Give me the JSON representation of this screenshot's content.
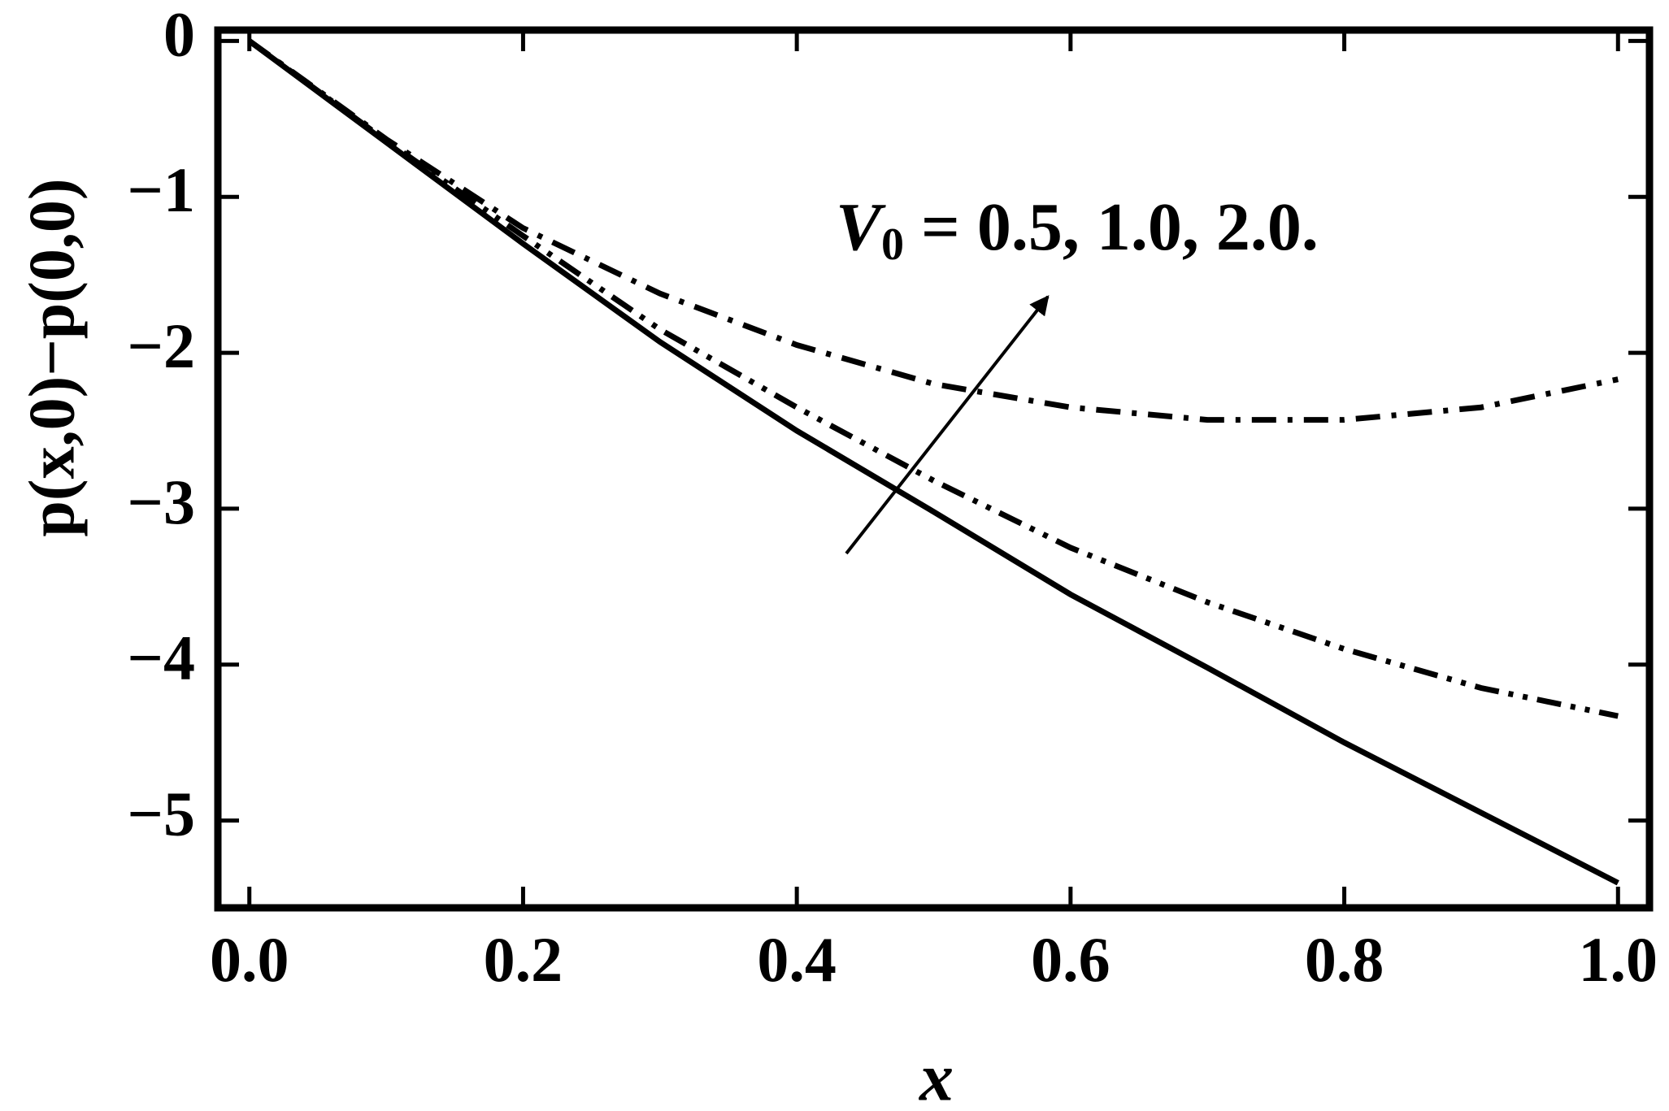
{
  "chart_data": {
    "type": "line",
    "x_label": "x",
    "y_label": "p(x,0)−p(0,0)",
    "annotation": {
      "symbol": "V",
      "subscript": "0",
      "text": " = 0.5, 1.0, 2.0."
    },
    "x": [
      0,
      0.1,
      0.2,
      0.3,
      0.4,
      0.5,
      0.6,
      0.7,
      0.8,
      0.9,
      1.0
    ],
    "series": [
      {
        "color": "#000000",
        "dash": "solid",
        "values": [
          0,
          -0.65,
          -1.3,
          -1.93,
          -2.5,
          -3.02,
          -3.55,
          -4.02,
          -4.5,
          -4.95,
          -5.4
        ]
      },
      {
        "color": "#000000",
        "dash": "dash-dot-dot",
        "values": [
          0,
          -0.64,
          -1.25,
          -1.85,
          -2.35,
          -2.82,
          -3.25,
          -3.6,
          -3.9,
          -4.15,
          -4.33
        ]
      },
      {
        "color": "#000000",
        "dash": "dash-dot",
        "values": [
          0,
          -0.63,
          -1.2,
          -1.62,
          -1.95,
          -2.2,
          -2.35,
          -2.43,
          -2.43,
          -2.35,
          -2.17
        ]
      }
    ],
    "xlim": [
      -0.023,
      1.023
    ],
    "ylim": [
      -5.56,
      0.07
    ],
    "xticks": [
      {
        "value": 0,
        "label": "0.0"
      },
      0.2,
      0.4,
      0.6,
      0.8,
      {
        "value": 1,
        "label": "1.0"
      }
    ],
    "yticks": [
      0,
      {
        "value": -1,
        "label": "−1"
      },
      {
        "value": -2,
        "label": "−2"
      },
      {
        "value": -3,
        "label": "−3"
      },
      {
        "value": -4,
        "label": "−4"
      },
      {
        "value": -5,
        "label": "−5"
      }
    ]
  }
}
